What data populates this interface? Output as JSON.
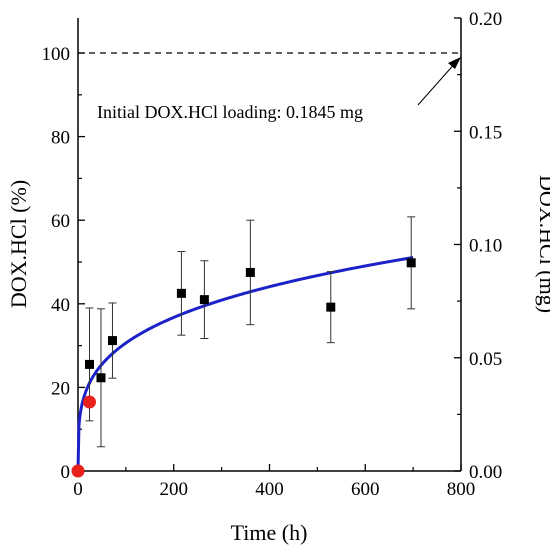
{
  "chart_data": {
    "type": "scatter",
    "xlabel": "Time (h)",
    "ylabel_left": "DOX.HCl (%)",
    "ylabel_right": "DOX.HCl (mg)",
    "xlim": [
      0,
      800
    ],
    "ylim_left": [
      0,
      110
    ],
    "ylim_right": [
      0,
      0.2
    ],
    "x_ticks": [
      0,
      200,
      400,
      600,
      800
    ],
    "y_left_ticks": [
      0,
      20,
      40,
      60,
      80,
      100
    ],
    "y_right_ticks": [
      "0.00",
      "0.05",
      "0.10",
      "0.15",
      "0.20"
    ],
    "grid": false,
    "reference_line": {
      "y": 100,
      "style": "dashed",
      "color": "#000000"
    },
    "annotation": {
      "text": "Initial DOX.HCl loading: 0.1845 mg",
      "points_to": [
        800,
        100
      ]
    },
    "series": [
      {
        "marker": "square",
        "color": "#000000",
        "points": [
          {
            "x": 0,
            "y": 0,
            "err": 0
          },
          {
            "x": 24,
            "y": 25.5,
            "err": 13.5
          },
          {
            "x": 48,
            "y": 22.3,
            "err": 16.5
          },
          {
            "x": 72,
            "y": 31.2,
            "err": 9.0
          },
          {
            "x": 216,
            "y": 42.5,
            "err": 10.0
          },
          {
            "x": 264,
            "y": 41.0,
            "err": 9.3
          },
          {
            "x": 360,
            "y": 47.5,
            "err": 12.5
          },
          {
            "x": 528,
            "y": 39.2,
            "err": 8.5
          },
          {
            "x": 696,
            "y": 49.8,
            "err": 11.0
          }
        ]
      },
      {
        "marker": "circle",
        "color": "#e8211d",
        "points": [
          {
            "x": 0,
            "y": 0
          },
          {
            "x": 24,
            "y": 16.5
          }
        ]
      },
      {
        "type": "line",
        "color": "#1c22c8",
        "fit": {
          "model": "power",
          "a": 9.12,
          "b": 0.263
        },
        "x_range": [
          0,
          700
        ]
      }
    ]
  }
}
